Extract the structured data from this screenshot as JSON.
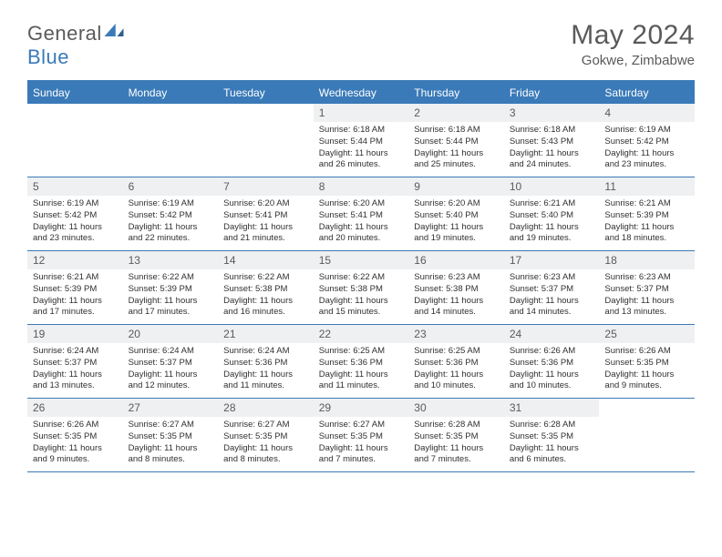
{
  "logo": {
    "word1": "General",
    "word2": "Blue"
  },
  "header": {
    "title": "May 2024",
    "location": "Gokwe, Zimbabwe"
  },
  "colors": {
    "accent": "#3a7ab8",
    "header_band": "#eef0f2",
    "text_muted": "#5a5a5a",
    "text_body": "#303030",
    "bg": "#ffffff"
  },
  "weekdays": [
    "Sunday",
    "Monday",
    "Tuesday",
    "Wednesday",
    "Thursday",
    "Friday",
    "Saturday"
  ],
  "fonts": {
    "title_size": 30,
    "location_size": 15,
    "weekday_size": 12,
    "daynum_size": 12,
    "body_size": 9.5
  },
  "weeks": [
    [
      {
        "day": "",
        "text": ""
      },
      {
        "day": "",
        "text": ""
      },
      {
        "day": "",
        "text": ""
      },
      {
        "day": "1",
        "text": "Sunrise: 6:18 AM\nSunset: 5:44 PM\nDaylight: 11 hours and 26 minutes."
      },
      {
        "day": "2",
        "text": "Sunrise: 6:18 AM\nSunset: 5:44 PM\nDaylight: 11 hours and 25 minutes."
      },
      {
        "day": "3",
        "text": "Sunrise: 6:18 AM\nSunset: 5:43 PM\nDaylight: 11 hours and 24 minutes."
      },
      {
        "day": "4",
        "text": "Sunrise: 6:19 AM\nSunset: 5:42 PM\nDaylight: 11 hours and 23 minutes."
      }
    ],
    [
      {
        "day": "5",
        "text": "Sunrise: 6:19 AM\nSunset: 5:42 PM\nDaylight: 11 hours and 23 minutes."
      },
      {
        "day": "6",
        "text": "Sunrise: 6:19 AM\nSunset: 5:42 PM\nDaylight: 11 hours and 22 minutes."
      },
      {
        "day": "7",
        "text": "Sunrise: 6:20 AM\nSunset: 5:41 PM\nDaylight: 11 hours and 21 minutes."
      },
      {
        "day": "8",
        "text": "Sunrise: 6:20 AM\nSunset: 5:41 PM\nDaylight: 11 hours and 20 minutes."
      },
      {
        "day": "9",
        "text": "Sunrise: 6:20 AM\nSunset: 5:40 PM\nDaylight: 11 hours and 19 minutes."
      },
      {
        "day": "10",
        "text": "Sunrise: 6:21 AM\nSunset: 5:40 PM\nDaylight: 11 hours and 19 minutes."
      },
      {
        "day": "11",
        "text": "Sunrise: 6:21 AM\nSunset: 5:39 PM\nDaylight: 11 hours and 18 minutes."
      }
    ],
    [
      {
        "day": "12",
        "text": "Sunrise: 6:21 AM\nSunset: 5:39 PM\nDaylight: 11 hours and 17 minutes."
      },
      {
        "day": "13",
        "text": "Sunrise: 6:22 AM\nSunset: 5:39 PM\nDaylight: 11 hours and 17 minutes."
      },
      {
        "day": "14",
        "text": "Sunrise: 6:22 AM\nSunset: 5:38 PM\nDaylight: 11 hours and 16 minutes."
      },
      {
        "day": "15",
        "text": "Sunrise: 6:22 AM\nSunset: 5:38 PM\nDaylight: 11 hours and 15 minutes."
      },
      {
        "day": "16",
        "text": "Sunrise: 6:23 AM\nSunset: 5:38 PM\nDaylight: 11 hours and 14 minutes."
      },
      {
        "day": "17",
        "text": "Sunrise: 6:23 AM\nSunset: 5:37 PM\nDaylight: 11 hours and 14 minutes."
      },
      {
        "day": "18",
        "text": "Sunrise: 6:23 AM\nSunset: 5:37 PM\nDaylight: 11 hours and 13 minutes."
      }
    ],
    [
      {
        "day": "19",
        "text": "Sunrise: 6:24 AM\nSunset: 5:37 PM\nDaylight: 11 hours and 13 minutes."
      },
      {
        "day": "20",
        "text": "Sunrise: 6:24 AM\nSunset: 5:37 PM\nDaylight: 11 hours and 12 minutes."
      },
      {
        "day": "21",
        "text": "Sunrise: 6:24 AM\nSunset: 5:36 PM\nDaylight: 11 hours and 11 minutes."
      },
      {
        "day": "22",
        "text": "Sunrise: 6:25 AM\nSunset: 5:36 PM\nDaylight: 11 hours and 11 minutes."
      },
      {
        "day": "23",
        "text": "Sunrise: 6:25 AM\nSunset: 5:36 PM\nDaylight: 11 hours and 10 minutes."
      },
      {
        "day": "24",
        "text": "Sunrise: 6:26 AM\nSunset: 5:36 PM\nDaylight: 11 hours and 10 minutes."
      },
      {
        "day": "25",
        "text": "Sunrise: 6:26 AM\nSunset: 5:35 PM\nDaylight: 11 hours and 9 minutes."
      }
    ],
    [
      {
        "day": "26",
        "text": "Sunrise: 6:26 AM\nSunset: 5:35 PM\nDaylight: 11 hours and 9 minutes."
      },
      {
        "day": "27",
        "text": "Sunrise: 6:27 AM\nSunset: 5:35 PM\nDaylight: 11 hours and 8 minutes."
      },
      {
        "day": "28",
        "text": "Sunrise: 6:27 AM\nSunset: 5:35 PM\nDaylight: 11 hours and 8 minutes."
      },
      {
        "day": "29",
        "text": "Sunrise: 6:27 AM\nSunset: 5:35 PM\nDaylight: 11 hours and 7 minutes."
      },
      {
        "day": "30",
        "text": "Sunrise: 6:28 AM\nSunset: 5:35 PM\nDaylight: 11 hours and 7 minutes."
      },
      {
        "day": "31",
        "text": "Sunrise: 6:28 AM\nSunset: 5:35 PM\nDaylight: 11 hours and 6 minutes."
      },
      {
        "day": "",
        "text": ""
      }
    ]
  ]
}
